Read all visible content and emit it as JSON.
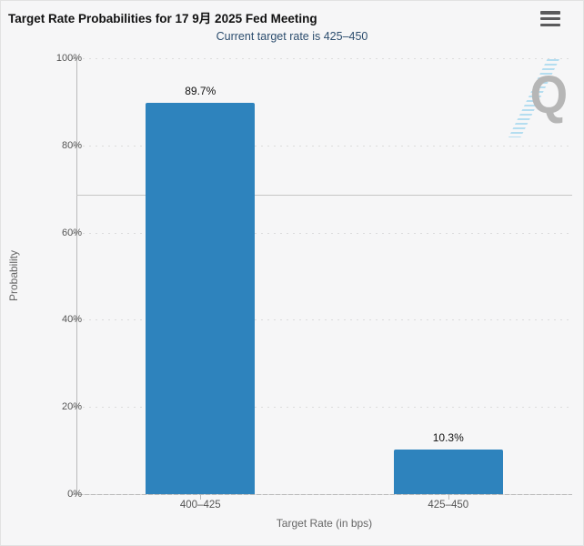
{
  "header": {
    "title": "Target Rate Probabilities for 17 9月 2025 Fed Meeting",
    "menu_icon": "hamburger-icon"
  },
  "subtitle": "Current target rate is 425–450",
  "watermark_letter": "Q",
  "colors": {
    "bar": "#2e83bd",
    "subtitle_text": "#2c4d6e",
    "background": "#f6f6f7",
    "gridline": "#dcdcdc",
    "reference_line": "#c6c6c6",
    "watermark_gray": "#b6b6b6",
    "watermark_blue": "#7ec9eb"
  },
  "chart_data": {
    "type": "bar",
    "title": "Target Rate Probabilities for 17 9月 2025 Fed Meeting",
    "subtitle": "Current target rate is 425–450",
    "categories": [
      "400–425",
      "425–450"
    ],
    "values": [
      89.7,
      10.3
    ],
    "value_labels": [
      "89.7%",
      "10.3%"
    ],
    "xlabel": "Target Rate (in bps)",
    "ylabel": "Probability",
    "ylim": [
      0,
      100
    ],
    "yticks": [
      {
        "value": 0,
        "label": "0%"
      },
      {
        "value": 20,
        "label": "20%"
      },
      {
        "value": 40,
        "label": "40%"
      },
      {
        "value": 60,
        "label": "60%"
      },
      {
        "value": 80,
        "label": "80%"
      },
      {
        "value": 100,
        "label": "100%"
      }
    ],
    "grid": "dotted-horizontal",
    "legend": "none",
    "reference_line_pct": 68.7
  }
}
